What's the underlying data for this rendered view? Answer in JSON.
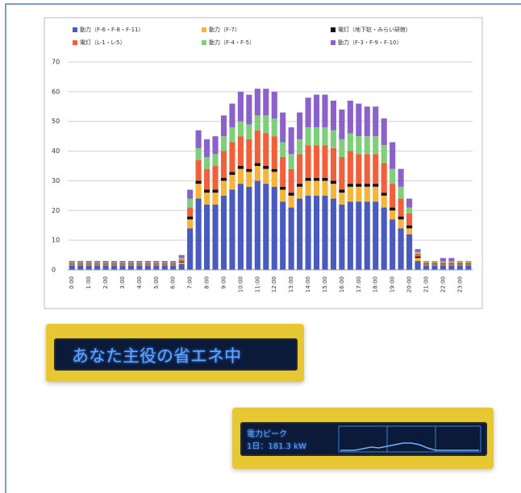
{
  "chart_data": {
    "type": "stacked_bar",
    "categories": [
      "0:00",
      null,
      "1:00",
      null,
      "2:00",
      null,
      "3:00",
      null,
      "4:00",
      null,
      "5:00",
      null,
      "6:00",
      null,
      "7:00",
      null,
      "8:00",
      null,
      "9:00",
      null,
      "10:00",
      null,
      "11:00",
      null,
      "12:00",
      null,
      "13:00",
      null,
      "14:00",
      null,
      "15:00",
      null,
      "16:00",
      null,
      "17:00",
      null,
      "18:00",
      null,
      "19:00",
      null,
      "20:00",
      null,
      "21:00",
      null,
      "22:00",
      null,
      "23:00",
      null
    ],
    "series": [
      {
        "name": "動力（F-6・F-8・F-11）",
        "color": "#4a5bbf",
        "values": [
          1.5,
          1.5,
          1.5,
          1.5,
          1.5,
          1.5,
          1.5,
          1.5,
          1.5,
          1.5,
          1.5,
          1.5,
          1.5,
          2,
          14,
          24,
          22,
          22,
          25,
          27,
          29,
          28,
          30,
          29,
          28,
          23,
          21,
          24,
          25,
          25,
          25,
          24,
          22,
          23,
          23,
          23,
          23,
          21,
          17,
          14,
          12,
          3,
          1.5,
          1.5,
          1.5,
          1.5,
          1.5,
          1.5
        ]
      },
      {
        "name": "動力（F-7）",
        "color": "#f5b43c",
        "values": [
          0.3,
          0.3,
          0.3,
          0.3,
          0.3,
          0.3,
          0.3,
          0.3,
          0.3,
          0.3,
          0.3,
          0.3,
          0.3,
          0.5,
          3,
          5,
          4,
          4,
          5,
          5,
          5,
          5,
          5,
          5,
          5,
          4,
          4,
          4,
          5,
          5,
          5,
          5,
          4,
          5,
          5,
          5,
          5,
          4,
          3,
          3,
          2,
          1,
          0.3,
          0.3,
          0.3,
          0.3,
          0.3,
          0.3
        ]
      },
      {
        "name": "電灯（地下駐・みらい研館）",
        "color": "#111111",
        "values": [
          0.2,
          0.2,
          0.2,
          0.2,
          0.2,
          0.2,
          0.2,
          0.2,
          0.2,
          0.2,
          0.2,
          0.2,
          0.2,
          0.3,
          1,
          1,
          1,
          1,
          1,
          1,
          1,
          1,
          1,
          1,
          1,
          1,
          1,
          1,
          1,
          1,
          1,
          1,
          1,
          1,
          1,
          1,
          1,
          1,
          1,
          1,
          1,
          0.5,
          0.2,
          0.2,
          0.2,
          0.2,
          0.2,
          0.2
        ]
      },
      {
        "name": "電灯（L-1・L-5）",
        "color": "#f0603a",
        "values": [
          0.3,
          0.3,
          0.3,
          0.3,
          0.3,
          0.3,
          0.3,
          0.3,
          0.3,
          0.3,
          0.3,
          0.3,
          0.3,
          0.7,
          3,
          7,
          7,
          8,
          9,
          10,
          10,
          10,
          11,
          11,
          11,
          10,
          8,
          10,
          11,
          11,
          11,
          11,
          11,
          11,
          10,
          10,
          10,
          10,
          8,
          6,
          4,
          1,
          0.5,
          0.5,
          0.5,
          0.5,
          0.5,
          0.5
        ]
      },
      {
        "name": "動力（F-4・F-5）",
        "color": "#7fcf7a",
        "values": [
          0.2,
          0.2,
          0.2,
          0.2,
          0.2,
          0.2,
          0.2,
          0.2,
          0.2,
          0.2,
          0.2,
          0.2,
          0.2,
          0.5,
          3,
          4,
          4,
          4,
          5,
          5,
          5,
          5,
          5,
          6,
          6,
          5,
          5,
          5,
          6,
          6,
          6,
          6,
          6,
          6,
          6,
          6,
          6,
          6,
          5,
          4,
          2,
          0.5,
          0.3,
          0.3,
          0.3,
          0.3,
          0.3,
          0.3
        ]
      },
      {
        "name": "動力（F-3・F-9・F-10）",
        "color": "#8a62c9",
        "values": [
          0.5,
          0.5,
          0.5,
          0.5,
          0.5,
          0.5,
          0.5,
          0.5,
          0.5,
          0.5,
          0.5,
          0.5,
          0.5,
          1,
          3,
          6,
          6,
          6,
          7,
          8,
          10,
          10,
          9,
          9,
          9,
          10,
          9,
          9,
          10,
          11,
          11,
          10,
          10,
          11,
          11,
          10,
          10,
          9,
          9,
          6,
          3,
          1,
          0.2,
          0.2,
          1.2,
          1.2,
          0.2,
          0.2
        ]
      }
    ],
    "ylim": [
      0,
      70
    ],
    "yticks": [
      0,
      10,
      20,
      30,
      40,
      50,
      60,
      70
    ],
    "grid": true
  },
  "displays": [
    {
      "text": "あなた主役の省エネ中"
    },
    {
      "lines": [
        "電力ピーク",
        "1日：181.3 kW"
      ]
    }
  ]
}
